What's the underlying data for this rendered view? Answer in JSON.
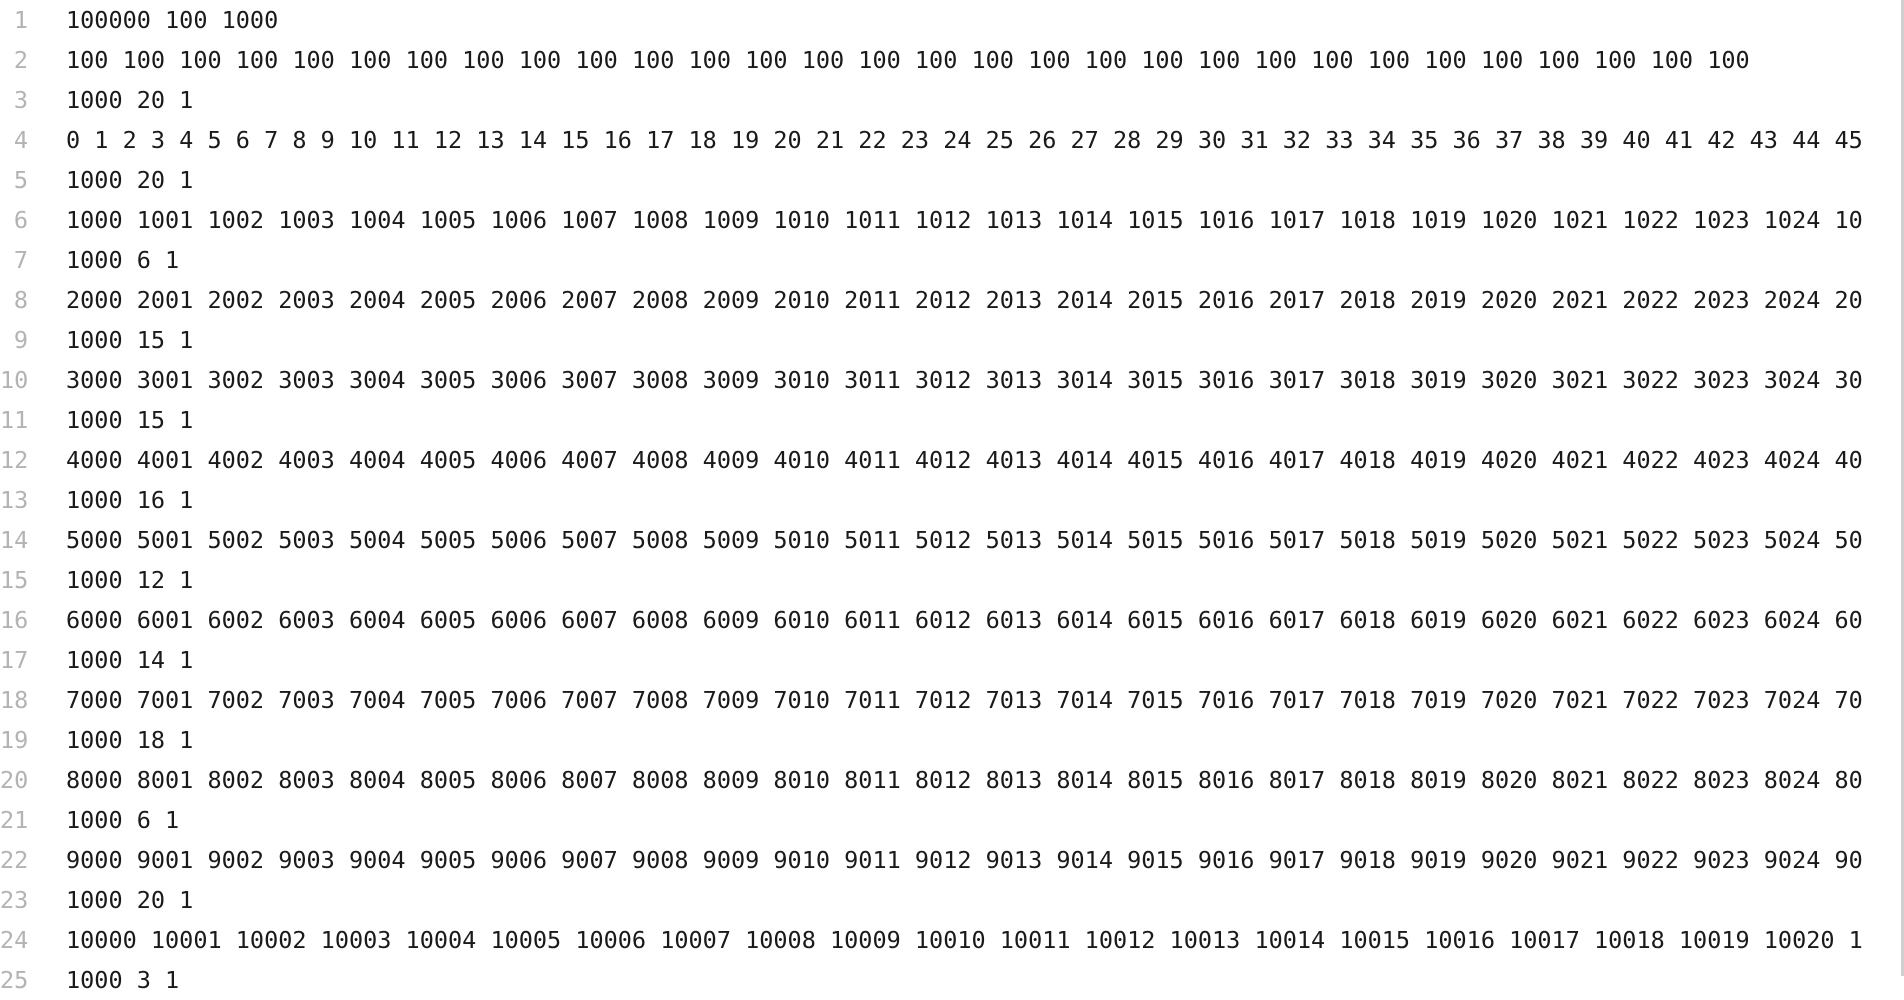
{
  "editor": {
    "lines": [
      {
        "number": "1",
        "text": "100000 100 1000"
      },
      {
        "number": "2",
        "text": "100 100 100 100 100 100 100 100 100 100 100 100 100 100 100 100 100 100 100 100 100 100 100 100 100 100 100 100 100 100"
      },
      {
        "number": "3",
        "text": "1000 20 1"
      },
      {
        "number": "4",
        "text": "0 1 2 3 4 5 6 7 8 9 10 11 12 13 14 15 16 17 18 19 20 21 22 23 24 25 26 27 28 29 30 31 32 33 34 35 36 37 38 39 40 41 42 43 44 45"
      },
      {
        "number": "5",
        "text": "1000 20 1"
      },
      {
        "number": "6",
        "text": "1000 1001 1002 1003 1004 1005 1006 1007 1008 1009 1010 1011 1012 1013 1014 1015 1016 1017 1018 1019 1020 1021 1022 1023 1024 10"
      },
      {
        "number": "7",
        "text": "1000 6 1"
      },
      {
        "number": "8",
        "text": "2000 2001 2002 2003 2004 2005 2006 2007 2008 2009 2010 2011 2012 2013 2014 2015 2016 2017 2018 2019 2020 2021 2022 2023 2024 20"
      },
      {
        "number": "9",
        "text": "1000 15 1"
      },
      {
        "number": "10",
        "text": "3000 3001 3002 3003 3004 3005 3006 3007 3008 3009 3010 3011 3012 3013 3014 3015 3016 3017 3018 3019 3020 3021 3022 3023 3024 30"
      },
      {
        "number": "11",
        "text": "1000 15 1"
      },
      {
        "number": "12",
        "text": "4000 4001 4002 4003 4004 4005 4006 4007 4008 4009 4010 4011 4012 4013 4014 4015 4016 4017 4018 4019 4020 4021 4022 4023 4024 40"
      },
      {
        "number": "13",
        "text": "1000 16 1"
      },
      {
        "number": "14",
        "text": "5000 5001 5002 5003 5004 5005 5006 5007 5008 5009 5010 5011 5012 5013 5014 5015 5016 5017 5018 5019 5020 5021 5022 5023 5024 50"
      },
      {
        "number": "15",
        "text": "1000 12 1"
      },
      {
        "number": "16",
        "text": "6000 6001 6002 6003 6004 6005 6006 6007 6008 6009 6010 6011 6012 6013 6014 6015 6016 6017 6018 6019 6020 6021 6022 6023 6024 60"
      },
      {
        "number": "17",
        "text": "1000 14 1"
      },
      {
        "number": "18",
        "text": "7000 7001 7002 7003 7004 7005 7006 7007 7008 7009 7010 7011 7012 7013 7014 7015 7016 7017 7018 7019 7020 7021 7022 7023 7024 70"
      },
      {
        "number": "19",
        "text": "1000 18 1"
      },
      {
        "number": "20",
        "text": "8000 8001 8002 8003 8004 8005 8006 8007 8008 8009 8010 8011 8012 8013 8014 8015 8016 8017 8018 8019 8020 8021 8022 8023 8024 80"
      },
      {
        "number": "21",
        "text": "1000 6 1"
      },
      {
        "number": "22",
        "text": "9000 9001 9002 9003 9004 9005 9006 9007 9008 9009 9010 9011 9012 9013 9014 9015 9016 9017 9018 9019 9020 9021 9022 9023 9024 90"
      },
      {
        "number": "23",
        "text": "1000 20 1"
      },
      {
        "number": "24",
        "text": "10000 10001 10002 10003 10004 10005 10006 10007 10008 10009 10010 10011 10012 10013 10014 10015 10016 10017 10018 10019 10020 1"
      },
      {
        "number": "25",
        "text": "1000 3 1"
      }
    ]
  }
}
